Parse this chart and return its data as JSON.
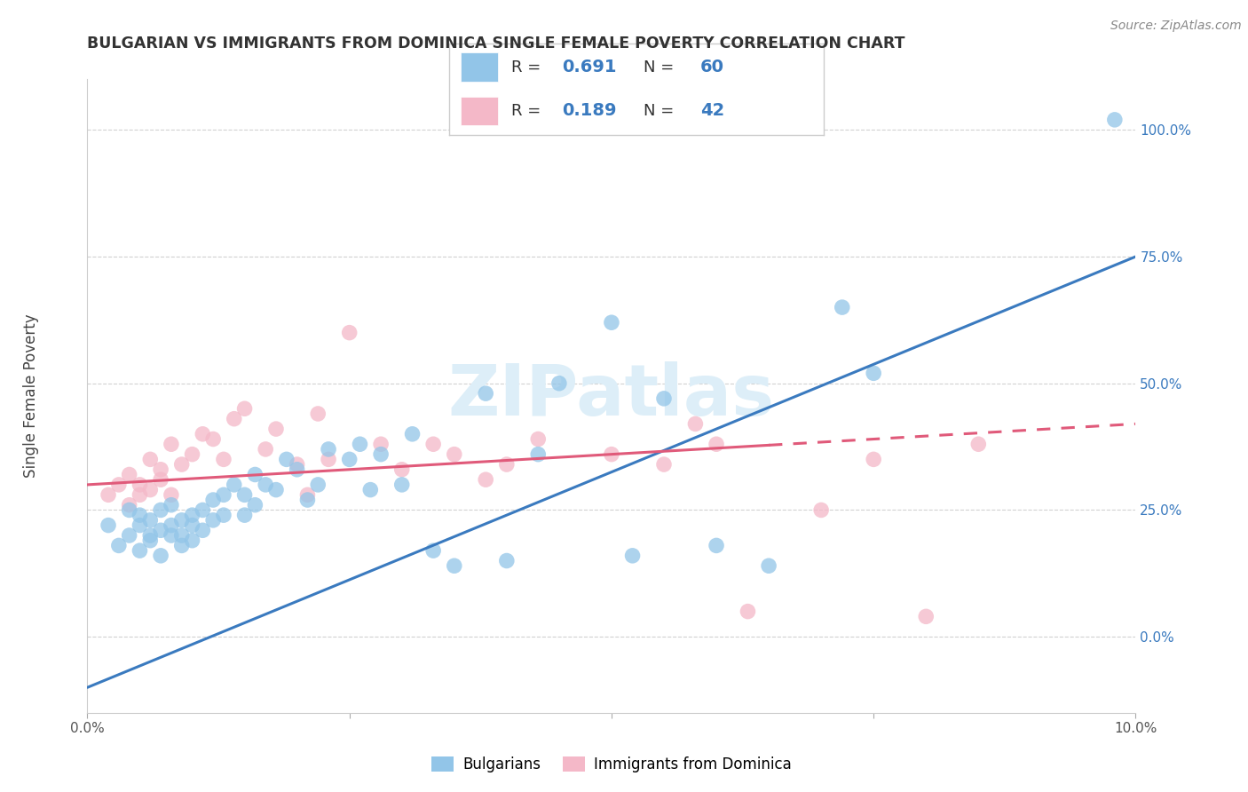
{
  "title": "BULGARIAN VS IMMIGRANTS FROM DOMINICA SINGLE FEMALE POVERTY CORRELATION CHART",
  "source": "Source: ZipAtlas.com",
  "ylabel": "Single Female Poverty",
  "blue_R": "0.691",
  "blue_N": "60",
  "pink_R": "0.189",
  "pink_N": "42",
  "blue_color": "#92c5e8",
  "pink_color": "#f4b8c8",
  "trendline_blue": "#3a7abf",
  "trendline_pink": "#e05a7a",
  "watermark_color": "#ddeef8",
  "legend_blue": "Bulgarians",
  "legend_pink": "Immigrants from Dominica",
  "ytick_labels": [
    "0.0%",
    "25.0%",
    "50.0%",
    "75.0%",
    "100.0%"
  ],
  "ytick_values": [
    0.0,
    0.25,
    0.5,
    0.75,
    1.0
  ],
  "xlim": [
    0.0,
    0.1
  ],
  "ylim": [
    -0.15,
    1.1
  ],
  "blue_line_x": [
    0.0,
    0.1
  ],
  "blue_line_y": [
    -0.1,
    0.75
  ],
  "pink_line_x": [
    0.0,
    0.1
  ],
  "pink_line_y": [
    0.3,
    0.42
  ],
  "blue_scatter_x": [
    0.002,
    0.003,
    0.004,
    0.004,
    0.005,
    0.005,
    0.005,
    0.006,
    0.006,
    0.006,
    0.007,
    0.007,
    0.007,
    0.008,
    0.008,
    0.008,
    0.009,
    0.009,
    0.009,
    0.01,
    0.01,
    0.01,
    0.011,
    0.011,
    0.012,
    0.012,
    0.013,
    0.013,
    0.014,
    0.015,
    0.015,
    0.016,
    0.016,
    0.017,
    0.018,
    0.019,
    0.02,
    0.021,
    0.022,
    0.023,
    0.025,
    0.026,
    0.027,
    0.028,
    0.03,
    0.031,
    0.033,
    0.035,
    0.038,
    0.04,
    0.043,
    0.045,
    0.05,
    0.052,
    0.055,
    0.06,
    0.065,
    0.072,
    0.075,
    0.098
  ],
  "blue_scatter_y": [
    0.22,
    0.18,
    0.2,
    0.25,
    0.22,
    0.17,
    0.24,
    0.2,
    0.23,
    0.19,
    0.21,
    0.25,
    0.16,
    0.22,
    0.2,
    0.26,
    0.23,
    0.2,
    0.18,
    0.24,
    0.22,
    0.19,
    0.25,
    0.21,
    0.27,
    0.23,
    0.28,
    0.24,
    0.3,
    0.28,
    0.24,
    0.32,
    0.26,
    0.3,
    0.29,
    0.35,
    0.33,
    0.27,
    0.3,
    0.37,
    0.35,
    0.38,
    0.29,
    0.36,
    0.3,
    0.4,
    0.17,
    0.14,
    0.48,
    0.15,
    0.36,
    0.5,
    0.62,
    0.16,
    0.47,
    0.18,
    0.14,
    0.65,
    0.52,
    1.02
  ],
  "pink_scatter_x": [
    0.002,
    0.003,
    0.004,
    0.004,
    0.005,
    0.005,
    0.006,
    0.006,
    0.007,
    0.007,
    0.008,
    0.008,
    0.009,
    0.01,
    0.011,
    0.012,
    0.013,
    0.014,
    0.015,
    0.017,
    0.018,
    0.02,
    0.021,
    0.022,
    0.023,
    0.025,
    0.028,
    0.03,
    0.033,
    0.035,
    0.038,
    0.04,
    0.043,
    0.05,
    0.055,
    0.058,
    0.06,
    0.063,
    0.07,
    0.075,
    0.08,
    0.085
  ],
  "pink_scatter_y": [
    0.28,
    0.3,
    0.26,
    0.32,
    0.3,
    0.28,
    0.35,
    0.29,
    0.33,
    0.31,
    0.28,
    0.38,
    0.34,
    0.36,
    0.4,
    0.39,
    0.35,
    0.43,
    0.45,
    0.37,
    0.41,
    0.34,
    0.28,
    0.44,
    0.35,
    0.6,
    0.38,
    0.33,
    0.38,
    0.36,
    0.31,
    0.34,
    0.39,
    0.36,
    0.34,
    0.42,
    0.38,
    0.05,
    0.25,
    0.35,
    0.04,
    0.38
  ]
}
